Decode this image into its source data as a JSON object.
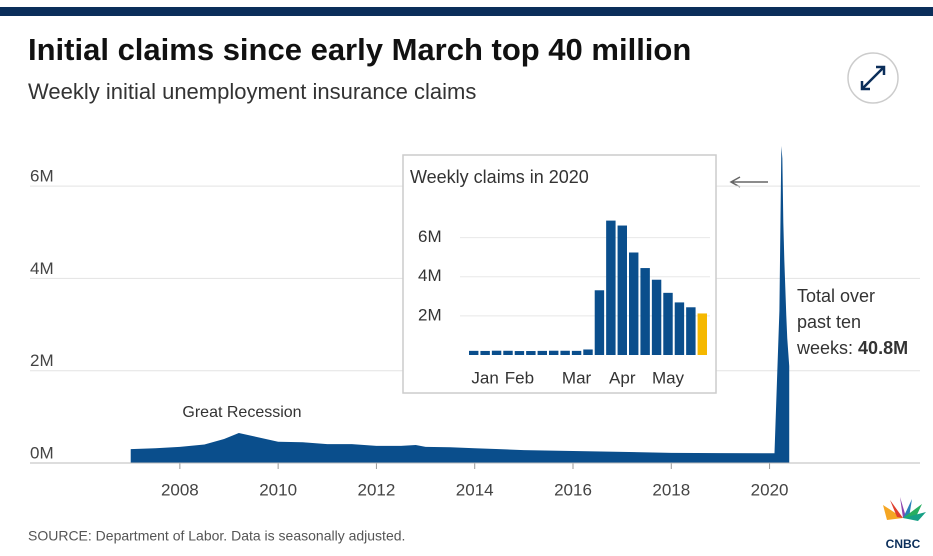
{
  "title": "Initial claims since early March top 40 million",
  "subtitle": "Weekly initial unemployment insurance claims",
  "source": "SOURCE: Department of Labor. Data is seasonally adjusted.",
  "logo": "CNBC",
  "chart_data": [
    {
      "type": "area",
      "color": "#0a4e8c",
      "x": [
        2007.0,
        2007.5,
        2008.0,
        2008.5,
        2008.9,
        2009.2,
        2009.5,
        2010.0,
        2010.5,
        2011.0,
        2011.5,
        2012.0,
        2012.5,
        2012.8,
        2013.0,
        2013.5,
        2014.0,
        2014.5,
        2015.0,
        2016.0,
        2017.0,
        2018.0,
        2019.0,
        2020.1,
        2020.2,
        2020.24,
        2020.26,
        2020.28,
        2020.3,
        2020.32,
        2020.34,
        2020.36,
        2020.38,
        2020.4
      ],
      "values": [
        300000,
        320000,
        350000,
        400000,
        520000,
        650000,
        580000,
        460000,
        450000,
        410000,
        410000,
        370000,
        370000,
        390000,
        350000,
        340000,
        320000,
        300000,
        280000,
        260000,
        240000,
        220000,
        215000,
        210000,
        3300000,
        6870000,
        6600000,
        5200000,
        4400000,
        3800000,
        3200000,
        2700000,
        2400000,
        2100000
      ],
      "xlim": [
        2005.5,
        2023
      ],
      "xticks": [
        2008,
        2010,
        2012,
        2014,
        2016,
        2018,
        2020
      ],
      "ylim": [
        0,
        7000000
      ],
      "yticks": [
        {
          "value": 0,
          "label": "0M"
        },
        {
          "value": 2000000,
          "label": "2M"
        },
        {
          "value": 4000000,
          "label": "4M"
        },
        {
          "value": 6000000,
          "label": "6M"
        }
      ],
      "grid": true,
      "annotations": [
        "Great Recession",
        "Total over",
        "past ten",
        "weeks:",
        "40.8M"
      ]
    },
    {
      "type": "bar",
      "title": "Weekly claims in 2020",
      "categories": [
        null,
        "Jan",
        null,
        null,
        "Feb",
        null,
        null,
        null,
        null,
        "Mar",
        null,
        null,
        null,
        "Apr",
        null,
        null,
        null,
        "May",
        null,
        null,
        null
      ],
      "values": [
        212000,
        207000,
        220000,
        216000,
        202000,
        203000,
        210000,
        219000,
        217000,
        211000,
        282000,
        3307000,
        6867000,
        6615000,
        5237000,
        4442000,
        3846000,
        3176000,
        2687000,
        2438000,
        2123000
      ],
      "colors": [
        "#0a4e8c",
        "#0a4e8c",
        "#0a4e8c",
        "#0a4e8c",
        "#0a4e8c",
        "#0a4e8c",
        "#0a4e8c",
        "#0a4e8c",
        "#0a4e8c",
        "#0a4e8c",
        "#0a4e8c",
        "#0a4e8c",
        "#0a4e8c",
        "#0a4e8c",
        "#0a4e8c",
        "#0a4e8c",
        "#0a4e8c",
        "#0a4e8c",
        "#0a4e8c",
        "#0a4e8c",
        "#f5b800"
      ],
      "ylim": [
        0,
        7000000
      ],
      "yticks": [
        {
          "value": 2000000,
          "label": "2M"
        },
        {
          "value": 4000000,
          "label": "4M"
        },
        {
          "value": 6000000,
          "label": "6M"
        }
      ]
    }
  ]
}
